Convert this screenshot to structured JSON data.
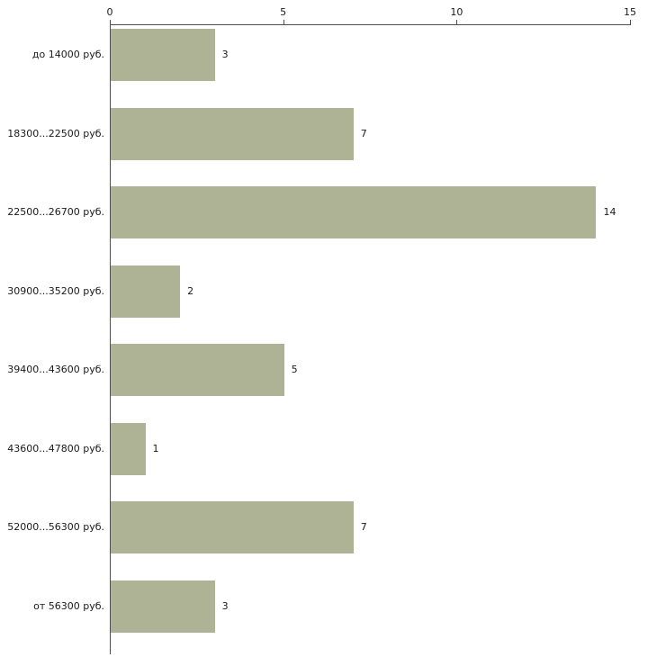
{
  "chart_data": {
    "type": "bar",
    "orientation": "horizontal",
    "title": "",
    "xlabel": "",
    "ylabel": "",
    "categories": [
      "до 14000 руб.",
      "18300...22500 руб.",
      "22500...26700 руб.",
      "30900...35200 руб.",
      "39400...43600 руб.",
      "43600...47800 руб.",
      "52000...56300 руб.",
      "от 56300 руб."
    ],
    "values": [
      3,
      7,
      14,
      2,
      5,
      1,
      7,
      3
    ],
    "value_labels": [
      "3",
      "7",
      "14",
      "2",
      "5",
      "1",
      "7",
      "3"
    ],
    "xlim": [
      0,
      15
    ],
    "x_ticks": [
      0,
      5,
      10,
      15
    ],
    "x_tick_labels": [
      "0",
      "5",
      "10",
      "15"
    ],
    "grid": false,
    "legend": "none",
    "bar_color": "#adb394",
    "axis_color": "#4f4f4f",
    "text_color": "#1a1a1a"
  }
}
